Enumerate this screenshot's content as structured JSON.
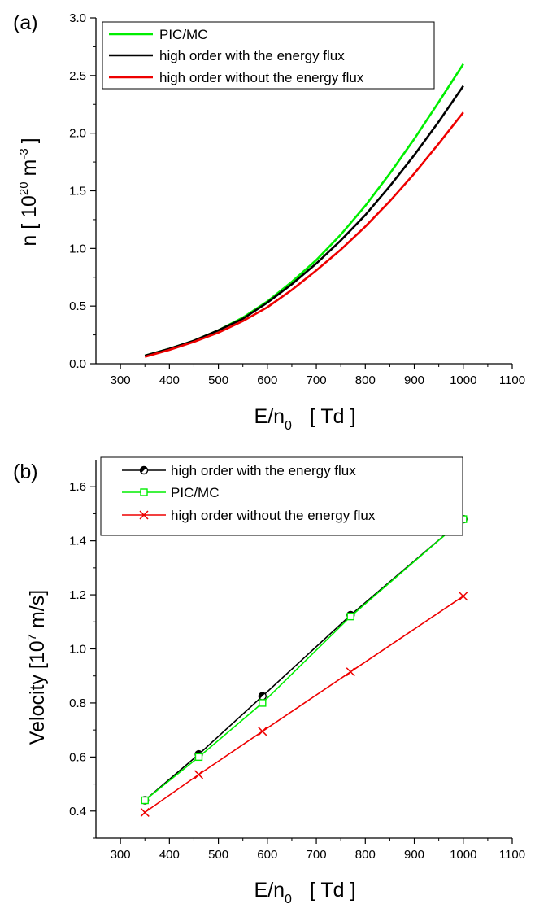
{
  "chart_data": [
    {
      "panel_label": "(a)",
      "type": "line",
      "xlabel": {
        "main": "E/n",
        "sub": "0",
        "unit": "[ Td ]"
      },
      "ylabel": {
        "pre": "n  [ 10",
        "sup1": "20",
        "mid": " m",
        "sup2": "-3",
        "post": "]"
      },
      "xlim": [
        250,
        1100
      ],
      "ylim": [
        0,
        3.0
      ],
      "xticks": [
        "300",
        "400",
        "500",
        "600",
        "700",
        "800",
        "900",
        "1000",
        "1100"
      ],
      "yticks": [
        "0.0",
        "0.5",
        "1.0",
        "1.5",
        "2.0",
        "2.5",
        "3.0"
      ],
      "legend_position": "top-left",
      "series": [
        {
          "name": "PIC/MC",
          "color": "#00ee00",
          "x": [
            350,
            400,
            450,
            500,
            550,
            600,
            650,
            700,
            750,
            800,
            850,
            900,
            950,
            1000
          ],
          "y": [
            0.07,
            0.13,
            0.2,
            0.29,
            0.4,
            0.54,
            0.71,
            0.9,
            1.12,
            1.37,
            1.65,
            1.95,
            2.27,
            2.6
          ]
        },
        {
          "name": "high order with the energy flux",
          "color": "#000000",
          "x": [
            350,
            400,
            450,
            500,
            550,
            600,
            650,
            700,
            750,
            800,
            850,
            900,
            950,
            1000
          ],
          "y": [
            0.07,
            0.13,
            0.2,
            0.29,
            0.39,
            0.53,
            0.69,
            0.87,
            1.07,
            1.29,
            1.54,
            1.81,
            2.1,
            2.41
          ]
        },
        {
          "name": "high order without the energy flux",
          "color": "#ee0000",
          "x": [
            350,
            400,
            450,
            500,
            550,
            600,
            650,
            700,
            750,
            800,
            850,
            900,
            950,
            1000
          ],
          "y": [
            0.06,
            0.12,
            0.19,
            0.27,
            0.37,
            0.49,
            0.64,
            0.81,
            0.99,
            1.19,
            1.41,
            1.65,
            1.91,
            2.18
          ]
        }
      ]
    },
    {
      "panel_label": "(b)",
      "type": "line",
      "xlabel": {
        "main": "E/n",
        "sub": "0",
        "unit": "[ Td ]"
      },
      "ylabel": {
        "pre": "Velocity [10",
        "sup1": "7",
        "mid": " m/s]"
      },
      "xlim": [
        250,
        1100
      ],
      "ylim": [
        0.3,
        1.7
      ],
      "xticks": [
        "300",
        "400",
        "500",
        "600",
        "700",
        "800",
        "900",
        "1000",
        "1100"
      ],
      "yticks": [
        "0.4",
        "0.6",
        "0.8",
        "1.0",
        "1.2",
        "1.4",
        "1.6"
      ],
      "legend_position": "top-left",
      "series": [
        {
          "name": "high order with the energy flux",
          "color": "#000000",
          "marker": "half-filled-circle",
          "x": [
            350,
            460,
            590,
            770,
            1000
          ],
          "y": [
            0.44,
            0.61,
            0.825,
            1.125,
            1.48
          ]
        },
        {
          "name": "PIC/MC",
          "color": "#00ee00",
          "marker": "open-square",
          "x": [
            350,
            460,
            590,
            770,
            1000
          ],
          "y": [
            0.44,
            0.6,
            0.8,
            1.12,
            1.48
          ]
        },
        {
          "name": "high order without the energy flux",
          "color": "#ee0000",
          "marker": "cross",
          "x": [
            350,
            460,
            590,
            770,
            1000
          ],
          "y": [
            0.395,
            0.535,
            0.695,
            0.915,
            1.195
          ]
        }
      ]
    }
  ]
}
